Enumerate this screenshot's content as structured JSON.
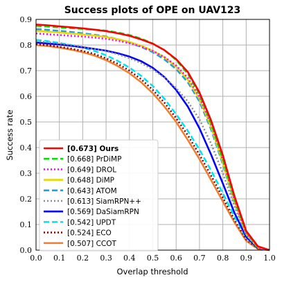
{
  "chart_data": {
    "type": "line",
    "title": "Success plots of OPE on UAV123",
    "xlabel": "Overlap threshold",
    "ylabel": "Success rate",
    "xlim": [
      0,
      1
    ],
    "ylim": [
      0,
      0.9
    ],
    "xticks": [
      "0.0",
      "0.1",
      "0.2",
      "0.3",
      "0.4",
      "0.5",
      "0.6",
      "0.7",
      "0.8",
      "0.9",
      "1.0"
    ],
    "yticks": [
      "0.0",
      "0.1",
      "0.2",
      "0.3",
      "0.4",
      "0.5",
      "0.6",
      "0.7",
      "0.8",
      "0.9"
    ],
    "grid": true,
    "legend_position": "bottom-left",
    "x": [
      0.0,
      0.05,
      0.1,
      0.15,
      0.2,
      0.25,
      0.3,
      0.35,
      0.4,
      0.45,
      0.5,
      0.55,
      0.6,
      0.65,
      0.7,
      0.75,
      0.8,
      0.85,
      0.9,
      0.95,
      1.0
    ],
    "series": [
      {
        "name": "[0.673] Ours",
        "color": "#ff0000",
        "dash": "solid",
        "bold": true,
        "values": [
          0.88,
          0.877,
          0.873,
          0.869,
          0.865,
          0.86,
          0.854,
          0.846,
          0.836,
          0.822,
          0.805,
          0.78,
          0.745,
          0.695,
          0.615,
          0.505,
          0.37,
          0.21,
          0.075,
          0.015,
          0.0
        ]
      },
      {
        "name": "[0.668] PrDiMP",
        "color": "#00e000",
        "dash": "dashed",
        "bold": false,
        "values": [
          0.875,
          0.872,
          0.869,
          0.866,
          0.863,
          0.86,
          0.856,
          0.849,
          0.839,
          0.825,
          0.806,
          0.78,
          0.742,
          0.688,
          0.608,
          0.495,
          0.355,
          0.2,
          0.07,
          0.012,
          0.0
        ]
      },
      {
        "name": "[0.649] DROL",
        "color": "#ff00ff",
        "dash": "dotted",
        "bold": false,
        "values": [
          0.845,
          0.842,
          0.839,
          0.836,
          0.833,
          0.829,
          0.824,
          0.817,
          0.807,
          0.794,
          0.777,
          0.753,
          0.72,
          0.672,
          0.598,
          0.49,
          0.352,
          0.195,
          0.065,
          0.01,
          0.0
        ]
      },
      {
        "name": "[0.648] DiMP",
        "color": "#e6d800",
        "dash": "solid",
        "bold": false,
        "values": [
          0.855,
          0.852,
          0.849,
          0.845,
          0.841,
          0.837,
          0.831,
          0.823,
          0.812,
          0.797,
          0.778,
          0.752,
          0.716,
          0.665,
          0.59,
          0.48,
          0.342,
          0.19,
          0.063,
          0.01,
          0.0
        ]
      },
      {
        "name": "[0.643] ATOM",
        "color": "#1f9fdc",
        "dash": "dashed",
        "bold": false,
        "values": [
          0.862,
          0.859,
          0.855,
          0.851,
          0.846,
          0.84,
          0.833,
          0.823,
          0.81,
          0.793,
          0.772,
          0.744,
          0.706,
          0.655,
          0.58,
          0.47,
          0.335,
          0.185,
          0.06,
          0.01,
          0.0
        ]
      },
      {
        "name": "[0.613] SiamRPN++",
        "color": "#8c8c8c",
        "dash": "dotted",
        "bold": false,
        "values": [
          0.815,
          0.811,
          0.806,
          0.8,
          0.793,
          0.785,
          0.776,
          0.764,
          0.749,
          0.73,
          0.705,
          0.673,
          0.632,
          0.58,
          0.51,
          0.415,
          0.3,
          0.17,
          0.06,
          0.01,
          0.0
        ]
      },
      {
        "name": "[0.569] DaSiamRPN",
        "color": "#0000ff",
        "dash": "solid",
        "bold": false,
        "values": [
          0.81,
          0.806,
          0.802,
          0.797,
          0.791,
          0.785,
          0.778,
          0.768,
          0.755,
          0.737,
          0.711,
          0.675,
          0.625,
          0.56,
          0.475,
          0.372,
          0.26,
          0.145,
          0.052,
          0.008,
          0.0
        ]
      },
      {
        "name": "[0.542] UPDT",
        "color": "#00e5ee",
        "dash": "dashed",
        "bold": false,
        "values": [
          0.82,
          0.815,
          0.808,
          0.8,
          0.79,
          0.777,
          0.76,
          0.738,
          0.712,
          0.68,
          0.64,
          0.59,
          0.53,
          0.465,
          0.392,
          0.31,
          0.222,
          0.13,
          0.048,
          0.008,
          0.0
        ]
      },
      {
        "name": "[0.524] ECO",
        "color": "#8b0000",
        "dash": "dotted",
        "bold": false,
        "values": [
          0.803,
          0.799,
          0.793,
          0.786,
          0.777,
          0.765,
          0.748,
          0.727,
          0.7,
          0.667,
          0.625,
          0.575,
          0.515,
          0.448,
          0.372,
          0.29,
          0.205,
          0.118,
          0.042,
          0.007,
          0.0
        ]
      },
      {
        "name": "[0.507] CCOT",
        "color": "#f08030",
        "dash": "solid",
        "bold": false,
        "values": [
          0.8,
          0.796,
          0.79,
          0.782,
          0.772,
          0.759,
          0.741,
          0.718,
          0.69,
          0.655,
          0.612,
          0.56,
          0.5,
          0.43,
          0.355,
          0.273,
          0.19,
          0.108,
          0.036,
          0.005,
          0.0
        ]
      }
    ]
  }
}
